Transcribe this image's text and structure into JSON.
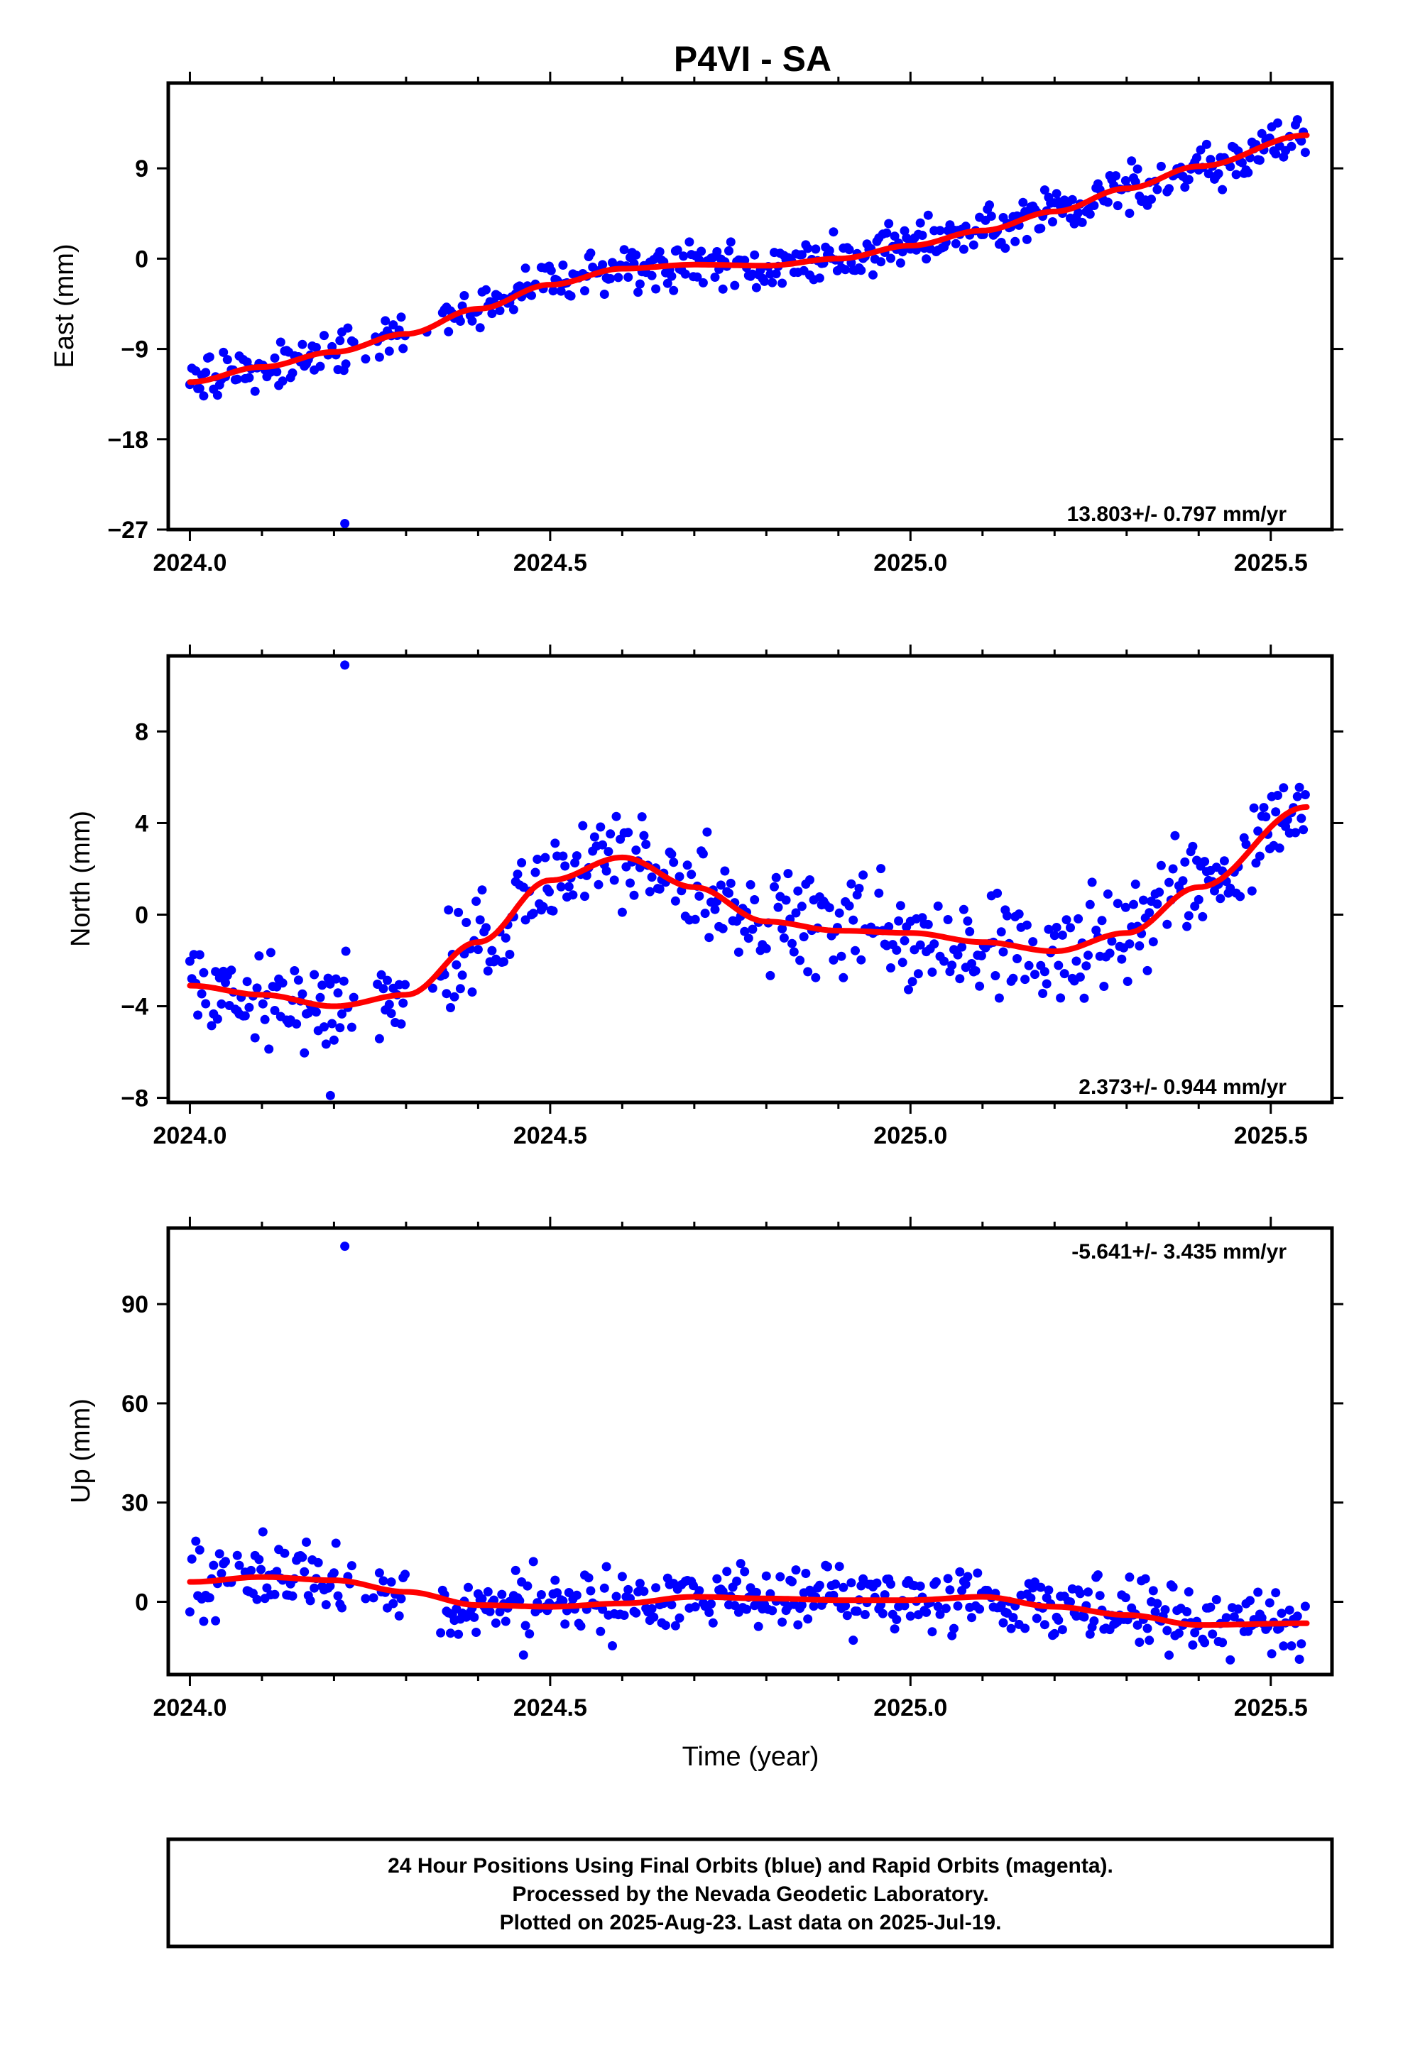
{
  "chart_data": [
    {
      "type": "scatter",
      "title": "P4VI - SA",
      "ylabel": "East (mm)",
      "xlabel": "",
      "xlim": [
        2023.97,
        2025.585
      ],
      "ylim": [
        -27,
        17.5
      ],
      "x_ticks": [
        "2024.0",
        "2024.5",
        "2025.0",
        "2025.5"
      ],
      "y_ticks": [
        "-27",
        "-18",
        "-9",
        "0",
        "9"
      ],
      "x_tick_values": [
        2024.0,
        2024.5,
        2025.0,
        2025.5
      ],
      "y_tick_values": [
        -27,
        -18,
        -9,
        0,
        9
      ],
      "rate": "13.803+/- 0.797 mm/yr",
      "marker_color": "#0000ff",
      "trend_color": "#ff0000",
      "trend": {
        "x": [
          2024.0,
          2024.1,
          2024.2,
          2024.3,
          2024.4,
          2024.5,
          2024.6,
          2024.7,
          2024.8,
          2024.9,
          2025.0,
          2025.1,
          2025.2,
          2025.3,
          2025.4,
          2025.55
        ],
        "y": [
          -12.3,
          -10.8,
          -9.3,
          -7.5,
          -5.0,
          -2.6,
          -1.0,
          -0.6,
          -0.7,
          0.0,
          1.3,
          2.8,
          4.7,
          7.0,
          9.2,
          12.3
        ]
      },
      "outliers": [
        {
          "x": 2024.215,
          "y": -26.4
        }
      ],
      "scatter_sd": 1.1,
      "gaps": [
        [
          2024.23,
          2024.26
        ],
        [
          2024.3,
          2024.35
        ]
      ]
    },
    {
      "type": "scatter",
      "title": "",
      "ylabel": "North (mm)",
      "xlabel": "",
      "xlim": [
        2023.97,
        2025.585
      ],
      "ylim": [
        -8.2,
        11.3
      ],
      "x_ticks": [
        "2024.0",
        "2024.5",
        "2025.0",
        "2025.5"
      ],
      "y_ticks": [
        "-8",
        "-4",
        "0",
        "4",
        "8"
      ],
      "x_tick_values": [
        2024.0,
        2024.5,
        2025.0,
        2025.5
      ],
      "y_tick_values": [
        -8,
        -4,
        0,
        4,
        8
      ],
      "rate": "2.373+/- 0.944 mm/yr",
      "marker_color": "#0000ff",
      "trend_color": "#ff0000",
      "trend": {
        "x": [
          2024.0,
          2024.1,
          2024.2,
          2024.3,
          2024.4,
          2024.5,
          2024.6,
          2024.7,
          2024.8,
          2024.9,
          2025.0,
          2025.1,
          2025.2,
          2025.3,
          2025.4,
          2025.55
        ],
        "y": [
          -3.1,
          -3.5,
          -4.0,
          -3.5,
          -1.2,
          1.5,
          2.5,
          1.2,
          -0.3,
          -0.7,
          -0.8,
          -1.2,
          -1.6,
          -0.8,
          1.2,
          4.7
        ]
      },
      "outliers": [
        {
          "x": 2024.215,
          "y": 10.9
        },
        {
          "x": 2024.195,
          "y": -7.9
        }
      ],
      "scatter_sd": 1.05,
      "gaps": [
        [
          2024.23,
          2024.26
        ],
        [
          2024.3,
          2024.35
        ]
      ]
    },
    {
      "type": "scatter",
      "title": "",
      "ylabel": "Up (mm)",
      "xlabel": "Time (year)",
      "xlim": [
        2023.97,
        2025.585
      ],
      "ylim": [
        -22,
        113
      ],
      "x_ticks": [
        "2024.0",
        "2024.5",
        "2025.0",
        "2025.5"
      ],
      "y_ticks": [
        "0",
        "30",
        "60",
        "90"
      ],
      "x_tick_values": [
        2024.0,
        2024.5,
        2025.0,
        2025.5
      ],
      "y_tick_values": [
        0,
        30,
        60,
        90
      ],
      "rate": "-5.641+/- 3.435 mm/yr",
      "marker_color": "#0000ff",
      "trend_color": "#ff0000",
      "trend": {
        "x": [
          2024.0,
          2024.1,
          2024.2,
          2024.3,
          2024.4,
          2024.5,
          2024.6,
          2024.7,
          2024.8,
          2024.9,
          2025.0,
          2025.1,
          2025.2,
          2025.3,
          2025.4,
          2025.55
        ],
        "y": [
          6.0,
          7.5,
          6.5,
          3.0,
          -1.0,
          -1.5,
          -0.5,
          1.5,
          1.0,
          0.5,
          0.5,
          1.5,
          -1.5,
          -4.0,
          -7.0,
          -6.5
        ]
      },
      "outliers": [
        {
          "x": 2024.215,
          "y": 107.5
        }
      ],
      "scatter_sd": 5.2,
      "gaps": [
        [
          2024.23,
          2024.26
        ],
        [
          2024.3,
          2024.35
        ]
      ]
    }
  ],
  "footer": {
    "line1": "24 Hour Positions Using Final Orbits (blue) and Rapid Orbits (magenta).",
    "line2": "Processed by the Nevada Geodetic Laboratory.",
    "line3": "Plotted on 2025-Aug-23. Last data on 2025-Jul-19."
  }
}
